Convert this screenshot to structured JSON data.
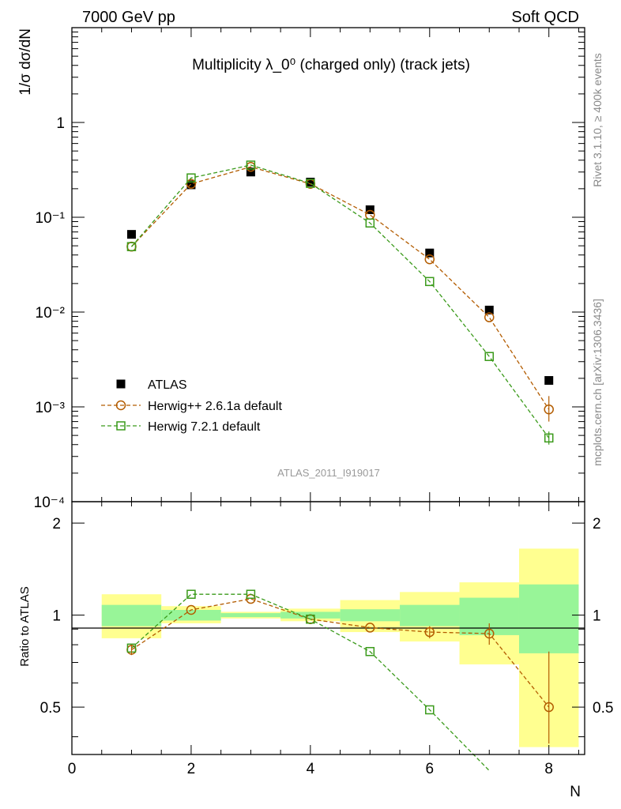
{
  "header": {
    "left": "7000 GeV pp",
    "right": "Soft QCD"
  },
  "side_labels": {
    "rivet": "Rivet 3.1.10, ≥ 400k events",
    "mcplots": "mcplots.cern.ch [arXiv:1306.3436]"
  },
  "chart_data": [
    {
      "type": "scatter",
      "title": "Multiplicity λ_0⁰ (charged only) (track jets)",
      "xlabel": "N",
      "ylabel": "1/σ dσ/dN",
      "yscale": "log",
      "xlim": [
        0,
        8.6
      ],
      "ylim": [
        0.0001,
        10
      ],
      "ytick_labels": [
        "10⁻⁴",
        "10⁻³",
        "10⁻²",
        "10⁻¹",
        "1"
      ],
      "watermark": "ATLAS_2011_I919017",
      "legend_position": "lower-left",
      "x": [
        1,
        2,
        3,
        4,
        5,
        6,
        7,
        8
      ],
      "series": [
        {
          "name": "ATLAS",
          "marker": "filled-square",
          "color": "#000000",
          "values": [
            0.066,
            0.22,
            0.3,
            0.235,
            0.12,
            0.042,
            0.0105,
            0.0019
          ]
        },
        {
          "name": "Herwig++ 2.6.1a default",
          "marker": "open-circle",
          "color": "#b35c00",
          "linestyle": "dashed",
          "values": [
            0.049,
            0.225,
            0.34,
            0.225,
            0.106,
            0.036,
            0.0088,
            0.00094
          ]
        },
        {
          "name": "Herwig 7.2.1 default",
          "marker": "open-square",
          "color": "#3a9a1a",
          "linestyle": "dashed",
          "values": [
            0.049,
            0.26,
            0.355,
            0.228,
            0.087,
            0.021,
            0.0034,
            0.00047
          ]
        }
      ]
    },
    {
      "type": "scatter",
      "title": "",
      "xlabel": "N",
      "ylabel": "Ratio to ATLAS",
      "xlim": [
        0,
        8.6
      ],
      "ylim": [
        0.35,
        2.35
      ],
      "ytick_labels": [
        "0.5",
        "1",
        "2"
      ],
      "xtick_labels": [
        "0",
        "2",
        "4",
        "6",
        "8"
      ],
      "x": [
        1,
        2,
        3,
        4,
        5,
        6,
        7,
        8
      ],
      "uncertainty_bands": {
        "edges": [
          0.5,
          1.5,
          2.5,
          3.5,
          4.5,
          5.5,
          6.5,
          7.5,
          8.5
        ],
        "stat_color": "#98f598",
        "total_color": "#ffff90",
        "stat_lo": [
          0.92,
          0.96,
          0.985,
          0.975,
          0.955,
          0.92,
          0.86,
          0.75
        ],
        "stat_hi": [
          1.08,
          1.04,
          1.015,
          1.025,
          1.045,
          1.08,
          1.14,
          1.26
        ],
        "total_lo": [
          0.84,
          0.94,
          0.975,
          0.955,
          0.88,
          0.82,
          0.69,
          0.37
        ],
        "total_hi": [
          1.17,
          1.07,
          1.025,
          1.05,
          1.12,
          1.19,
          1.28,
          1.65
        ]
      },
      "series": [
        {
          "name": "Herwig++ 2.6.1a default",
          "color": "#b35c00",
          "values": [
            0.77,
            1.04,
            1.13,
            0.97,
            0.91,
            0.88,
            0.87,
            0.5
          ]
        },
        {
          "name": "Herwig 7.2.1 default",
          "color": "#3a9a1a",
          "values": [
            0.78,
            1.17,
            1.17,
            0.97,
            0.76,
            0.49,
            0.31
          ]
        }
      ]
    }
  ]
}
